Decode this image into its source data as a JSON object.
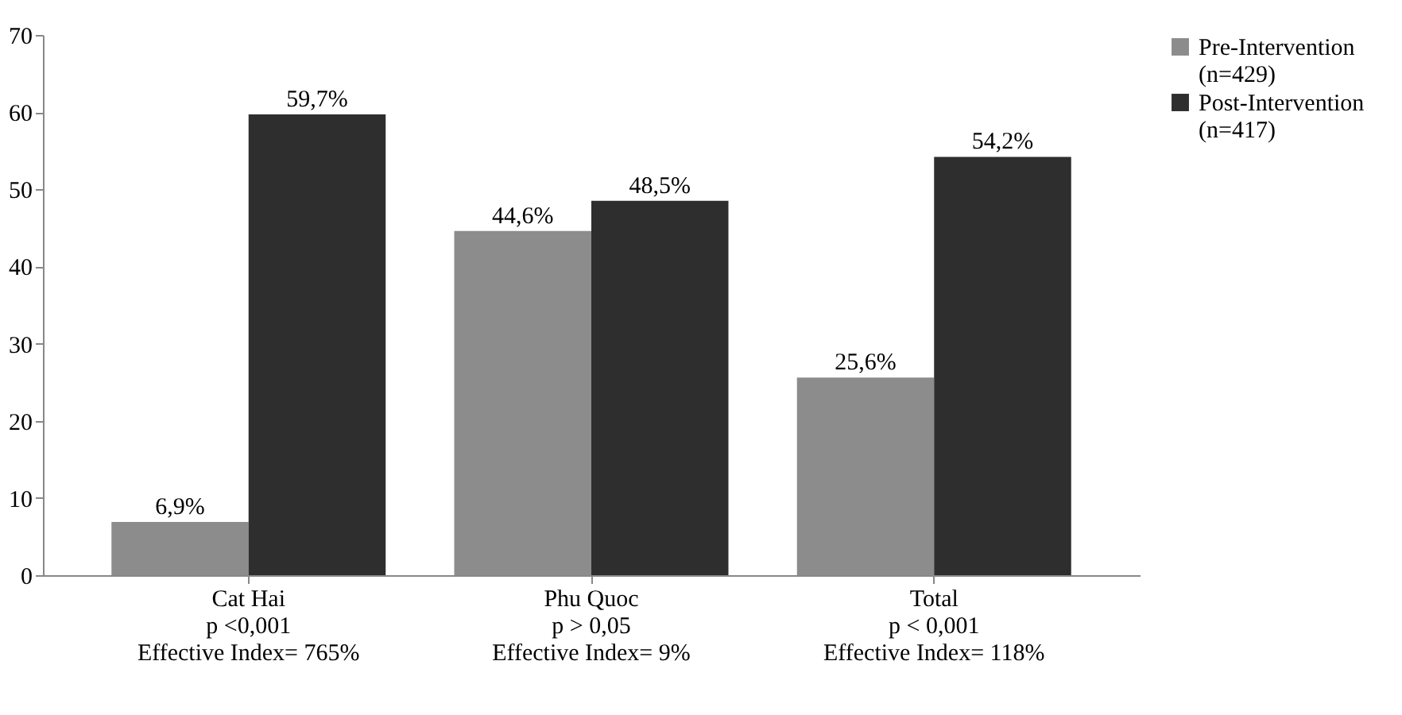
{
  "chart_data": {
    "type": "bar",
    "categories": [
      "Cat Hai\np <0,001\nEffective Index= 765%",
      "Phu Quoc\np > 0,05\nEffective Index= 9%",
      "Total\np < 0,001\nEffective Index= 118%"
    ],
    "series": [
      {
        "name": "Pre-Intervention (n=429)",
        "color": "#8c8c8c",
        "values": [
          6.9,
          44.6,
          25.6
        ],
        "value_labels": [
          "6,9%",
          "44,6%",
          "25,6%"
        ]
      },
      {
        "name": "Post-Intervention (n=417)",
        "color": "#2e2e2e",
        "values": [
          59.7,
          48.5,
          54.2
        ],
        "value_labels": [
          "59,7%",
          "48,5%",
          "54,2%"
        ]
      }
    ],
    "ylim": [
      0,
      70
    ],
    "yticks": [
      0,
      10,
      20,
      30,
      40,
      50,
      60,
      70
    ],
    "grid": false,
    "legend": "right"
  }
}
